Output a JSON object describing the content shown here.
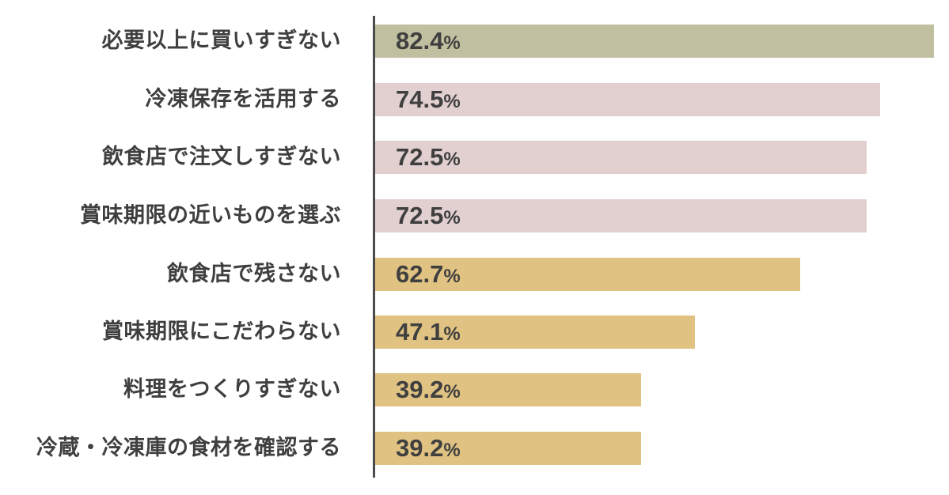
{
  "chart_data": {
    "type": "bar",
    "orientation": "horizontal",
    "title": "",
    "xlabel": "",
    "ylabel": "",
    "unit": "%",
    "grid": false,
    "legend": null,
    "xlim": [
      0,
      82.4
    ],
    "categories": [
      "必要以上に買いすぎない",
      "冷凍保存を活用する",
      "飲食店で注文しすぎない",
      "賞味期限の近いものを選ぶ",
      "飲食店で残さない",
      "賞味期限にこだわらない",
      "料理をつくりすぎない",
      "冷蔵・冷凍庫の食材を確認する"
    ],
    "values": [
      82.4,
      74.5,
      72.5,
      72.5,
      62.7,
      47.1,
      39.2,
      39.2
    ],
    "value_labels": [
      "82.4",
      "74.5",
      "72.5",
      "72.5",
      "62.7",
      "47.1",
      "39.2",
      "39.2"
    ],
    "bar_colors": [
      "#c0bf9f",
      "#e2d0d0",
      "#e2d0d0",
      "#e2d0d0",
      "#e0c282",
      "#e0c282",
      "#e0c282",
      "#e0c282"
    ]
  },
  "colors": {
    "axis": "#4a4a4a",
    "text": "#3f3f3f",
    "top": "#c0bf9f",
    "mid": "#e2d0d0",
    "low": "#e0c282"
  },
  "percent_sign": "%"
}
